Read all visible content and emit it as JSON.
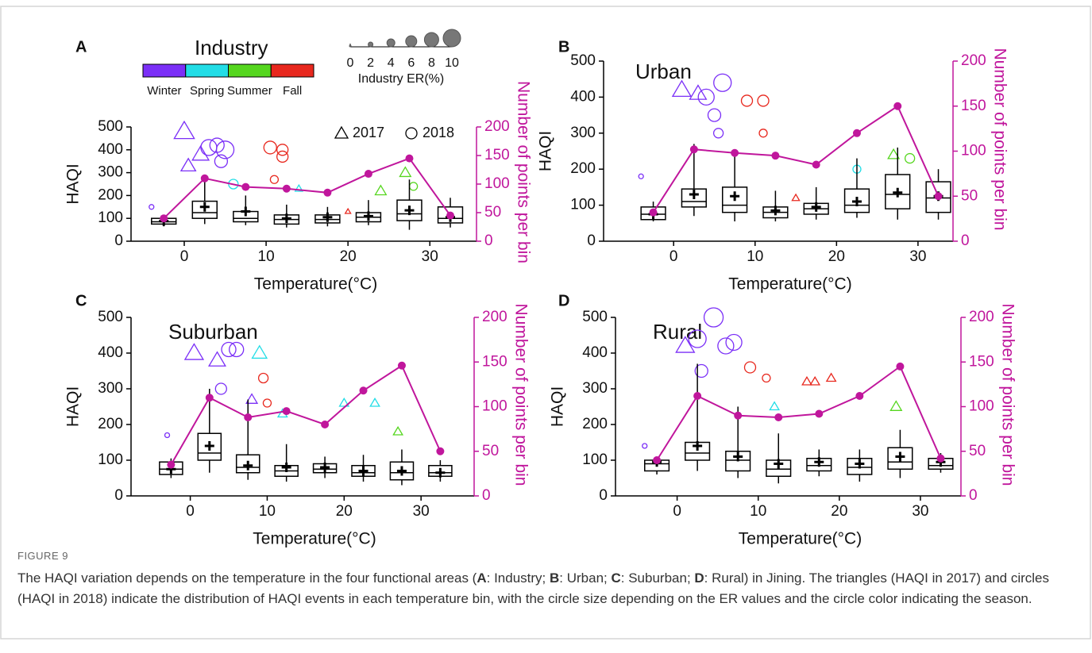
{
  "chart_data": [
    {
      "type": "box_line",
      "panel": "A",
      "title": "Industry",
      "xlabel": "Temperature(°C)",
      "ylabel": "HAQI",
      "y2label": "Number of points per bin",
      "xlim": [
        -6.5,
        35.7
      ],
      "xticks": [
        0,
        10,
        20,
        30
      ],
      "ylim": [
        0,
        500
      ],
      "yticks": [
        0,
        100,
        200,
        300,
        400,
        500
      ],
      "y2lim": [
        0,
        200
      ],
      "y2ticks": [
        0,
        50,
        100,
        150,
        200
      ],
      "x": [
        -2.5,
        2.5,
        7.5,
        12.5,
        17.5,
        22.5,
        27.5,
        32.5
      ],
      "boxes": [
        {
          "low": 65,
          "q1": 75,
          "median": 85,
          "q3": 100,
          "high": 110,
          "mean": 88
        },
        {
          "low": 75,
          "q1": 100,
          "median": 125,
          "q3": 175,
          "high": 290,
          "mean": 150
        },
        {
          "low": 70,
          "q1": 85,
          "median": 100,
          "q3": 130,
          "high": 200,
          "mean": 130
        },
        {
          "low": 60,
          "q1": 75,
          "median": 95,
          "q3": 115,
          "high": 160,
          "mean": 100
        },
        {
          "low": 65,
          "q1": 80,
          "median": 95,
          "q3": 115,
          "high": 150,
          "mean": 105
        },
        {
          "low": 70,
          "q1": 85,
          "median": 105,
          "q3": 125,
          "high": 180,
          "mean": 110
        },
        {
          "low": 50,
          "q1": 90,
          "median": 120,
          "q3": 180,
          "high": 270,
          "mean": 135
        },
        {
          "low": 60,
          "q1": 80,
          "median": 100,
          "q3": 150,
          "high": 190,
          "mean": 105
        }
      ],
      "counts": {
        "color": "#c0169c",
        "axis": "y2",
        "values": [
          40,
          110,
          95,
          92,
          85,
          118,
          145,
          45
        ]
      },
      "points": {
        "x": [
          0,
          0.5,
          3,
          4,
          5,
          4.5,
          2,
          10.5,
          12,
          12,
          11,
          27,
          24,
          14,
          -4,
          20,
          28,
          6
        ],
        "y": [
          480,
          330,
          410,
          420,
          400,
          350,
          380,
          410,
          400,
          370,
          270,
          300,
          220,
          230,
          150,
          130,
          240,
          250
        ],
        "er": [
          9,
          6,
          8,
          7,
          9,
          6,
          7,
          6,
          5,
          5,
          3,
          4,
          4,
          2,
          1,
          1,
          3,
          4
        ],
        "season": [
          "Winter",
          "Winter",
          "Winter",
          "Winter",
          "Winter",
          "Winter",
          "Winter",
          "Fall",
          "Fall",
          "Fall",
          "Fall",
          "Summer",
          "Summer",
          "Spring",
          "Winter",
          "Fall",
          "Summer",
          "Spring"
        ],
        "year": [
          "2017",
          "2017",
          "2018",
          "2018",
          "2018",
          "2018",
          "2017",
          "2018",
          "2018",
          "2018",
          "2018",
          "2017",
          "2017",
          "2017",
          "2018",
          "2017",
          "2018",
          "2018"
        ]
      },
      "legend": {
        "seasons": [
          {
            "name": "Winter",
            "color": "#7b2ff7"
          },
          {
            "name": "Spring",
            "color": "#22dde6"
          },
          {
            "name": "Summer",
            "color": "#55d61e"
          },
          {
            "name": "Fall",
            "color": "#e8281e"
          }
        ],
        "size_title": "Industry ER(%)",
        "size_ticks": [
          0,
          2,
          4,
          6,
          8,
          10
        ],
        "years": [
          {
            "name": "2017",
            "shape": "triangle"
          },
          {
            "name": "2018",
            "shape": "circle"
          }
        ]
      }
    },
    {
      "type": "box_line",
      "panel": "B",
      "title": "Urban",
      "xlabel": "Temperature(°C)",
      "ylabel": "HAQI",
      "y2label": "Number of points per bin",
      "xlim": [
        -8.6,
        34.3
      ],
      "xticks": [
        0,
        10,
        20,
        30
      ],
      "ylim": [
        0,
        500
      ],
      "yticks": [
        0,
        100,
        200,
        300,
        400,
        500
      ],
      "y2lim": [
        0,
        200
      ],
      "y2ticks": [
        0,
        50,
        100,
        150,
        200
      ],
      "x": [
        -2.5,
        2.5,
        7.5,
        12.5,
        17.5,
        22.5,
        27.5,
        32.5
      ],
      "boxes": [
        {
          "low": 55,
          "q1": 60,
          "median": 75,
          "q3": 95,
          "high": 110,
          "mean": 75
        },
        {
          "low": 70,
          "q1": 95,
          "median": 110,
          "q3": 145,
          "high": 270,
          "mean": 130
        },
        {
          "low": 55,
          "q1": 80,
          "median": 100,
          "q3": 150,
          "high": 250,
          "mean": 125
        },
        {
          "low": 55,
          "q1": 65,
          "median": 80,
          "q3": 95,
          "high": 140,
          "mean": 85
        },
        {
          "low": 60,
          "q1": 75,
          "median": 90,
          "q3": 105,
          "high": 150,
          "mean": 95
        },
        {
          "low": 65,
          "q1": 80,
          "median": 100,
          "q3": 145,
          "high": 230,
          "mean": 110
        },
        {
          "low": 60,
          "q1": 90,
          "median": 130,
          "q3": 185,
          "high": 260,
          "mean": 135
        },
        {
          "low": 60,
          "q1": 80,
          "median": 120,
          "q3": 165,
          "high": 200,
          "mean": 125
        }
      ],
      "counts": {
        "color": "#c0169c",
        "axis": "y2",
        "values": [
          32,
          102,
          98,
          95,
          85,
          120,
          150,
          50
        ]
      },
      "points": {
        "x": [
          1,
          3,
          4,
          6,
          5,
          5.5,
          9,
          11,
          11,
          27,
          29,
          22.5,
          -4,
          15
        ],
        "y": [
          420,
          410,
          400,
          440,
          350,
          300,
          390,
          390,
          300,
          240,
          230,
          200,
          180,
          120
        ],
        "er": [
          8,
          7,
          8,
          9,
          6,
          4,
          5,
          5,
          3,
          4,
          4,
          3,
          1,
          2
        ],
        "season": [
          "Winter",
          "Winter",
          "Winter",
          "Winter",
          "Winter",
          "Winter",
          "Fall",
          "Fall",
          "Fall",
          "Summer",
          "Summer",
          "Spring",
          "Winter",
          "Fall"
        ],
        "year": [
          "2017",
          "2017",
          "2018",
          "2018",
          "2018",
          "2018",
          "2018",
          "2018",
          "2018",
          "2017",
          "2018",
          "2018",
          "2018",
          "2017"
        ]
      }
    },
    {
      "type": "box_line",
      "panel": "C",
      "title": "Suburban",
      "xlabel": "Temperature(°C)",
      "ylabel": "HAQI",
      "y2label": "Number of points per bin",
      "xlim": [
        -7.7,
        36.9
      ],
      "xticks": [
        0,
        10,
        20,
        30
      ],
      "ylim": [
        0,
        500
      ],
      "yticks": [
        0,
        100,
        200,
        300,
        400,
        500
      ],
      "y2lim": [
        0,
        200
      ],
      "y2ticks": [
        0,
        50,
        100,
        150,
        200
      ],
      "x": [
        -2.5,
        2.5,
        7.5,
        12.5,
        17.5,
        22.5,
        27.5,
        32.5
      ],
      "boxes": [
        {
          "low": 50,
          "q1": 60,
          "median": 75,
          "q3": 95,
          "high": 105,
          "mean": 75
        },
        {
          "low": 65,
          "q1": 100,
          "median": 120,
          "q3": 175,
          "high": 300,
          "mean": 140
        },
        {
          "low": 45,
          "q1": 65,
          "median": 80,
          "q3": 115,
          "high": 270,
          "mean": 85
        },
        {
          "low": 40,
          "q1": 55,
          "median": 70,
          "q3": 85,
          "high": 145,
          "mean": 80
        },
        {
          "low": 50,
          "q1": 65,
          "median": 75,
          "q3": 90,
          "high": 110,
          "mean": 80
        },
        {
          "low": 40,
          "q1": 55,
          "median": 65,
          "q3": 85,
          "high": 115,
          "mean": 70
        },
        {
          "low": 30,
          "q1": 45,
          "median": 65,
          "q3": 95,
          "high": 130,
          "mean": 70
        },
        {
          "low": 40,
          "q1": 55,
          "median": 65,
          "q3": 85,
          "high": 100,
          "mean": 65
        }
      ],
      "counts": {
        "color": "#c0169c",
        "axis": "y2",
        "values": [
          35,
          110,
          88,
          95,
          80,
          118,
          146,
          50
        ]
      },
      "points": {
        "x": [
          0.5,
          3.5,
          5,
          6,
          9,
          4,
          8,
          9.5,
          10,
          20,
          24,
          27,
          -3,
          12
        ],
        "y": [
          400,
          380,
          410,
          410,
          400,
          300,
          270,
          330,
          260,
          260,
          260,
          180,
          170,
          230
        ],
        "er": [
          8,
          7,
          7,
          7,
          6,
          5,
          4,
          4,
          3,
          3,
          3,
          3,
          1,
          3
        ],
        "season": [
          "Winter",
          "Winter",
          "Winter",
          "Winter",
          "Spring",
          "Winter",
          "Winter",
          "Fall",
          "Fall",
          "Spring",
          "Spring",
          "Summer",
          "Winter",
          "Spring"
        ],
        "year": [
          "2017",
          "2017",
          "2018",
          "2018",
          "2017",
          "2018",
          "2017",
          "2018",
          "2018",
          "2017",
          "2017",
          "2017",
          "2018",
          "2017"
        ]
      }
    },
    {
      "type": "box_line",
      "panel": "D",
      "title": "Rural",
      "xlabel": "Temperature(°C)",
      "ylabel": "HAQI",
      "y2label": "Number of points per bin",
      "xlim": [
        -7.6,
        35
      ],
      "xticks": [
        0,
        10,
        20,
        30
      ],
      "ylim": [
        0,
        500
      ],
      "yticks": [
        0,
        100,
        200,
        300,
        400,
        500
      ],
      "y2lim": [
        0,
        200
      ],
      "y2ticks": [
        0,
        50,
        100,
        150,
        200
      ],
      "x": [
        -2.5,
        2.5,
        7.5,
        12.5,
        17.5,
        22.5,
        27.5,
        32.5
      ],
      "boxes": [
        {
          "low": 60,
          "q1": 70,
          "median": 90,
          "q3": 100,
          "high": 110,
          "mean": 95
        },
        {
          "low": 70,
          "q1": 100,
          "median": 120,
          "q3": 150,
          "high": 370,
          "mean": 140
        },
        {
          "low": 50,
          "q1": 70,
          "median": 100,
          "q3": 125,
          "high": 250,
          "mean": 110
        },
        {
          "low": 35,
          "q1": 55,
          "median": 75,
          "q3": 100,
          "high": 175,
          "mean": 90
        },
        {
          "low": 55,
          "q1": 70,
          "median": 85,
          "q3": 105,
          "high": 130,
          "mean": 95
        },
        {
          "low": 40,
          "q1": 60,
          "median": 80,
          "q3": 105,
          "high": 130,
          "mean": 90
        },
        {
          "low": 50,
          "q1": 75,
          "median": 95,
          "q3": 135,
          "high": 185,
          "mean": 110
        },
        {
          "low": 65,
          "q1": 75,
          "median": 85,
          "q3": 105,
          "high": 120,
          "mean": 95
        }
      ],
      "counts": {
        "color": "#c0169c",
        "axis": "y2",
        "values": [
          40,
          112,
          90,
          88,
          92,
          112,
          145,
          42
        ]
      },
      "points": {
        "x": [
          1,
          2.5,
          4.5,
          6,
          7,
          3,
          9,
          11,
          16,
          17,
          19,
          27,
          12,
          -4
        ],
        "y": [
          420,
          440,
          500,
          420,
          430,
          350,
          360,
          330,
          320,
          320,
          330,
          250,
          250,
          140
        ],
        "er": [
          8,
          9,
          10,
          8,
          8,
          6,
          5,
          3,
          3,
          3,
          3,
          4,
          3,
          1
        ],
        "season": [
          "Winter",
          "Winter",
          "Winter",
          "Winter",
          "Winter",
          "Winter",
          "Fall",
          "Fall",
          "Fall",
          "Fall",
          "Fall",
          "Summer",
          "Spring",
          "Winter"
        ],
        "year": [
          "2017",
          "2018",
          "2018",
          "2018",
          "2018",
          "2018",
          "2018",
          "2018",
          "2017",
          "2017",
          "2017",
          "2017",
          "2017",
          "2018"
        ]
      }
    }
  ],
  "caption": {
    "label": "FIGURE 9",
    "parts": [
      {
        "text": "The HAQI variation depends on the temperature in the four functional areas (",
        "bold": false
      },
      {
        "text": "A",
        "bold": true
      },
      {
        "text": ": Industry; ",
        "bold": false
      },
      {
        "text": "B",
        "bold": true
      },
      {
        "text": ": Urban; ",
        "bold": false
      },
      {
        "text": "C",
        "bold": true
      },
      {
        "text": ": Suburban; ",
        "bold": false
      },
      {
        "text": "D",
        "bold": true
      },
      {
        "text": ": Rural) in Jining. The triangles (HAQI in 2017) and circles (HAQI in 2018) indicate the distribution of HAQI events in each temperature bin, with the circle size depending on the ER values and the circle color indicating the season.",
        "bold": false
      }
    ]
  }
}
